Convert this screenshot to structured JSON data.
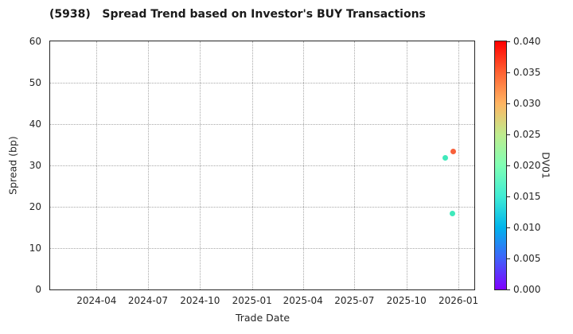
{
  "chart_data": {
    "type": "scatter",
    "title": "(5938)   Spread Trend based on Investor's BUY Transactions",
    "xlabel": "Trade Date",
    "ylabel": "Spread (bp)",
    "ylim": [
      0,
      60
    ],
    "yticks": [
      0,
      10,
      20,
      30,
      40,
      50,
      60
    ],
    "xtick_labels": [
      "2024-04",
      "2024-07",
      "2024-10",
      "2025-01",
      "2025-04",
      "2025-07",
      "2025-10",
      "2026-01"
    ],
    "x_domain": [
      "2024-01-10",
      "2026-01-29"
    ],
    "grid": true,
    "grid_style": "dotted",
    "points": [
      {
        "trade_date": "2025-12-23",
        "spread_bp": 33.3,
        "dv01": 0.036,
        "color": "#f8603a"
      },
      {
        "trade_date": "2025-12-08",
        "spread_bp": 31.8,
        "dv01": 0.016,
        "color": "#3fe9bb"
      },
      {
        "trade_date": "2025-12-21",
        "spread_bp": 18.3,
        "dv01": 0.016,
        "color": "#3fe9bb"
      }
    ],
    "colorbar": {
      "label": "DV01",
      "min": 0.0,
      "max": 0.04,
      "tick_labels": [
        "0.040",
        "0.035",
        "0.030",
        "0.025",
        "0.020",
        "0.015",
        "0.010",
        "0.005",
        "0.000"
      ],
      "colormap": "rainbow",
      "gradient_bottom_to_top": [
        "#8000ff",
        "#4062fa",
        "#00b4ec",
        "#40ecd4",
        "#80ffb4",
        "#bfec8e",
        "#ffb462",
        "#ff6232",
        "#ff0000"
      ]
    },
    "style_colors": {
      "spine": "#262626",
      "grid": "#a8a8a8",
      "text": "#262626",
      "background": "#ffffff"
    }
  }
}
